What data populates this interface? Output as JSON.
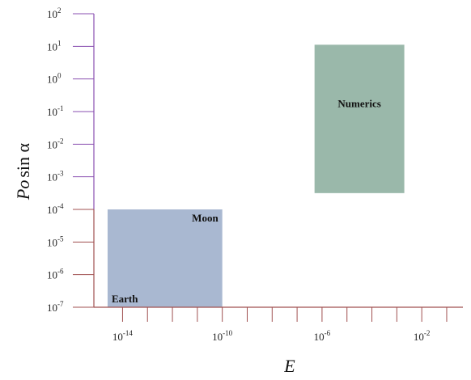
{
  "chart_data": {
    "type": "area",
    "title": "",
    "xlabel": "E",
    "ylabel_italic": "Po",
    "ylabel_rest": "sin α",
    "x_scale": "log",
    "y_scale": "log",
    "xlim_exp": [
      -15.15,
      -0.35
    ],
    "ylim_exp": [
      -7,
      2
    ],
    "x_ticks": [
      {
        "base": "10",
        "exp": "-14",
        "exp_value": -14
      },
      {
        "base": "10",
        "exp": "-10",
        "exp_value": -10
      },
      {
        "base": "10",
        "exp": "-6",
        "exp_value": -6
      },
      {
        "base": "10",
        "exp": "-2",
        "exp_value": -2
      }
    ],
    "x_minor_tick_exps": [
      -14,
      -13,
      -12,
      -11,
      -10,
      -9,
      -8,
      -7,
      -6,
      -5,
      -4,
      -3,
      -2,
      -1
    ],
    "y_ticks": [
      {
        "base": "10",
        "exp": "2",
        "exp_value": 2
      },
      {
        "base": "10",
        "exp": "1",
        "exp_value": 1
      },
      {
        "base": "10",
        "exp": "0",
        "exp_value": 0
      },
      {
        "base": "10",
        "exp": "-1",
        "exp_value": -1
      },
      {
        "base": "10",
        "exp": "-2",
        "exp_value": -2
      },
      {
        "base": "10",
        "exp": "-3",
        "exp_value": -3
      },
      {
        "base": "10",
        "exp": "-4",
        "exp_value": -4
      },
      {
        "base": "10",
        "exp": "-5",
        "exp_value": -5
      },
      {
        "base": "10",
        "exp": "-6",
        "exp_value": -6
      },
      {
        "base": "10",
        "exp": "-7",
        "exp_value": -7
      }
    ],
    "regions": [
      {
        "name": "Earth",
        "x_exp_range": [
          -14.6,
          -10.0
        ],
        "y_exp_range": [
          -7.0,
          -4.0
        ],
        "label_anchor": "bottom-left",
        "color": "#a9b8d1"
      },
      {
        "name": "Moon",
        "x_exp_range": [
          -14.6,
          -10.0
        ],
        "y_exp_range": [
          -7.0,
          -4.0
        ],
        "label_anchor": "top-right",
        "color": "#a9b8d1"
      },
      {
        "name": "Numerics",
        "x_exp_range": [
          -6.3,
          -2.7
        ],
        "y_exp_range": [
          -3.5,
          1.05
        ],
        "label_anchor": "top-center",
        "color": "#9ab8aa"
      }
    ],
    "colors": {
      "x_axis": "#a05050",
      "y_axis_upper": "#8a4fb0",
      "y_axis_lower": "#a05050"
    },
    "grid": false,
    "legend": "none"
  }
}
